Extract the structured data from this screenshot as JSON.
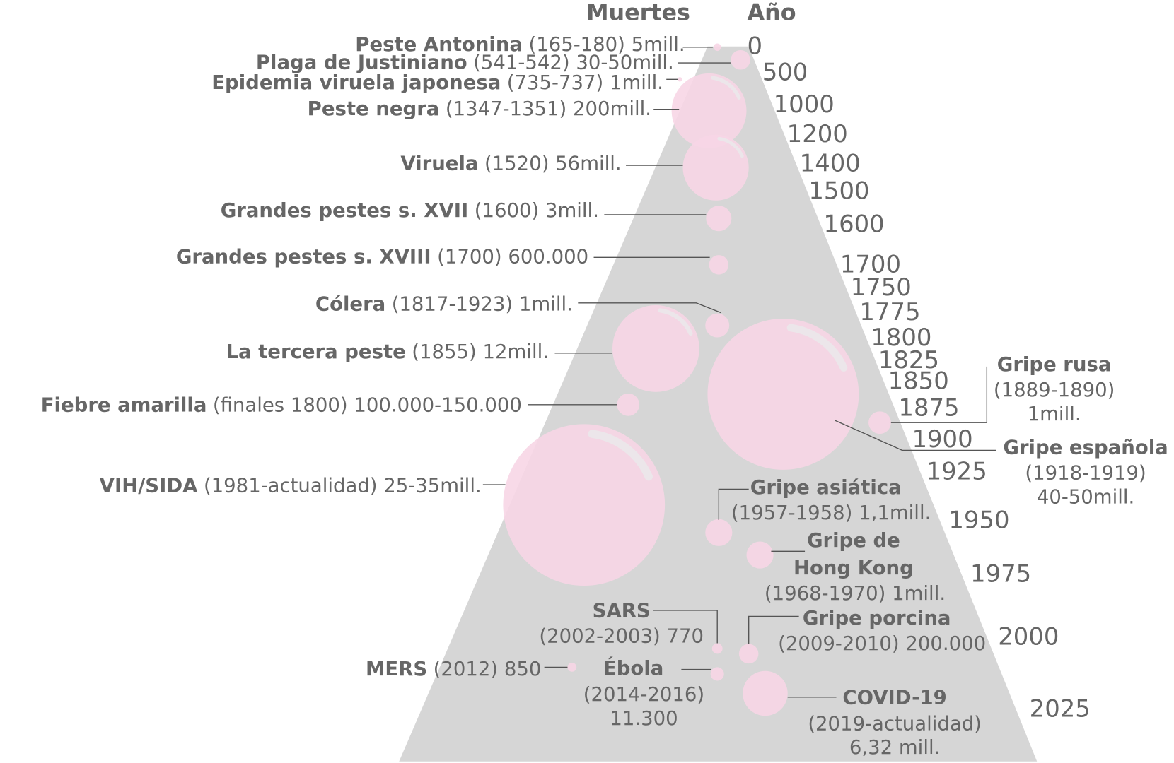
{
  "headers": {
    "deaths": "Muertes",
    "year": "Año"
  },
  "years": [
    "0",
    "500",
    "1000",
    "1200",
    "1400",
    "1500",
    "1600",
    "1700",
    "1750",
    "1775",
    "1800",
    "1825",
    "1850",
    "1875",
    "1900",
    "1925",
    "1950",
    "1975",
    "2000",
    "2025"
  ],
  "epidemics": [
    {
      "name": "Peste Antonina",
      "detail": "(165-180) 5mill."
    },
    {
      "name": "Plaga de Justiniano",
      "detail": "(541-542) 30-50mill."
    },
    {
      "name": "Epidemia viruela japonesa",
      "detail": "(735-737) 1mill."
    },
    {
      "name": "Peste negra",
      "detail": "(1347-1351) 200mill."
    },
    {
      "name": "Viruela",
      "detail": "(1520) 56mill."
    },
    {
      "name": "Grandes pestes s. XVII",
      "detail": "(1600) 3mill."
    },
    {
      "name": "Grandes pestes s. XVIII",
      "detail": "(1700) 600.000"
    },
    {
      "name": "Cólera",
      "detail": "(1817-1923) 1mill."
    },
    {
      "name": "La tercera peste",
      "detail": "(1855) 12mill."
    },
    {
      "name": "Fiebre amarilla",
      "detail": "(finales 1800) 100.000-150.000"
    },
    {
      "name": "VIH/SIDA",
      "detail": "(1981-actualidad) 25-35mill."
    },
    {
      "name": "Gripe rusa",
      "detail": [
        "(1889-1890)",
        "1mill."
      ]
    },
    {
      "name": "Gripe española",
      "detail": [
        "(1918-1919)",
        "40-50mill."
      ]
    },
    {
      "name": "Gripe asiática",
      "detail": [
        "(1957-1958) 1,1mill."
      ]
    },
    {
      "name": [
        "Gripe de",
        "Hong Kong"
      ],
      "detail": [
        "(1968-1970) 1mill."
      ]
    },
    {
      "name": "SARS",
      "detail": [
        "(2002-2003) 770"
      ]
    },
    {
      "name": "Gripe porcina",
      "detail": [
        "(2009-2010) 200.000"
      ]
    },
    {
      "name": "MERS",
      "detail": "(2012) 850"
    },
    {
      "name": "Ébola",
      "detail": [
        "(2014-2016)",
        "11.300"
      ]
    },
    {
      "name": "COVID-19",
      "detail": [
        "(2019-actualidad)",
        "6,32 mill."
      ]
    }
  ]
}
